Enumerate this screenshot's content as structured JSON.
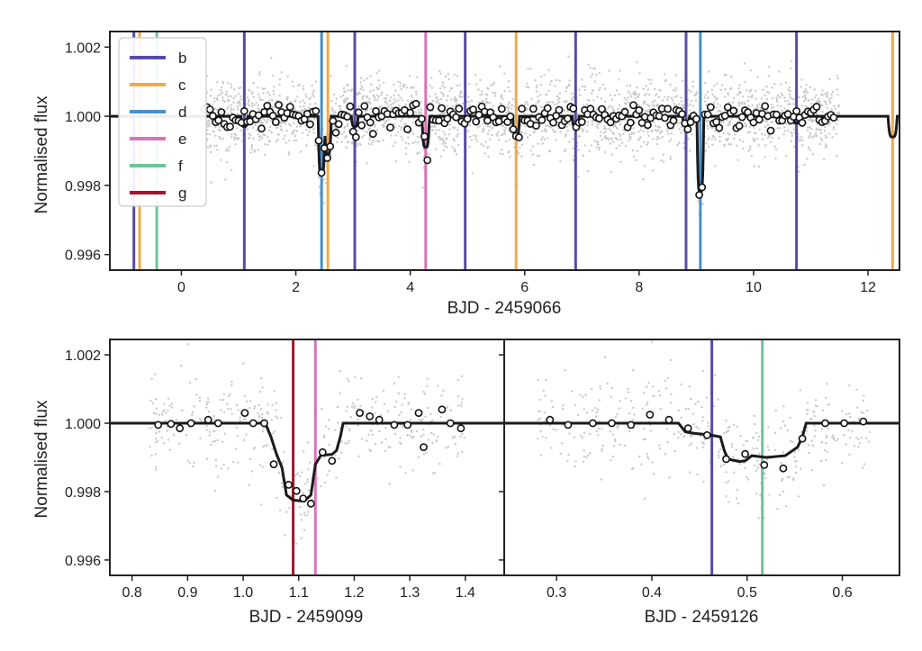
{
  "chart_data": [
    {
      "type": "scatter",
      "panel": "top",
      "xlabel": "BJD - 2459066",
      "ylabel": "Normalised flux",
      "xlim": [
        -1.25,
        12.55
      ],
      "ylim": [
        0.99555,
        1.00245
      ],
      "xticks": [
        0,
        2,
        4,
        6,
        8,
        10,
        12
      ],
      "yticks": [
        0.996,
        0.998,
        1.0,
        1.002
      ],
      "ytick_labels": [
        "0.996",
        "0.998",
        "1.000",
        "1.002"
      ],
      "legend": {
        "placement": "top-left",
        "entries": [
          {
            "label": "b",
            "color": "#5a4aa8"
          },
          {
            "label": "c",
            "color": "#f0a94a"
          },
          {
            "label": "d",
            "color": "#4a8fcb"
          },
          {
            "label": "e",
            "color": "#d774b8"
          },
          {
            "label": "f",
            "color": "#6cc49a"
          },
          {
            "label": "g",
            "color": "#a3152e"
          }
        ]
      },
      "transits": [
        {
          "planet": "b",
          "times": [
            -0.83,
            1.1,
            3.03,
            4.96,
            6.89,
            8.82,
            10.75
          ]
        },
        {
          "planet": "c",
          "times": [
            -0.73,
            2.56,
            5.85,
            12.43
          ]
        },
        {
          "planet": "d",
          "times": [
            2.45,
            9.07
          ]
        },
        {
          "planet": "e",
          "times": [
            4.27
          ]
        },
        {
          "planet": "f",
          "times": [
            -0.43
          ]
        },
        {
          "planet": "g",
          "times": []
        }
      ],
      "model": {
        "baseline": 1.0,
        "dips": [
          {
            "t": 2.45,
            "depth": 0.0017,
            "width": 0.12
          },
          {
            "t": 2.56,
            "depth": 0.0011,
            "width": 0.12
          },
          {
            "t": 9.07,
            "depth": 0.0022,
            "width": 0.12
          },
          {
            "t": 4.27,
            "depth": 0.0009,
            "width": 0.13
          },
          {
            "t": 12.43,
            "depth": 0.0006,
            "width": 0.16
          },
          {
            "t": 5.85,
            "depth": 0.0006,
            "width": 0.12
          },
          {
            "t": 1.1,
            "depth": 0.0003,
            "width": 0.12
          },
          {
            "t": 3.03,
            "depth": 0.0003,
            "width": 0.12
          },
          {
            "t": 6.89,
            "depth": 0.0003,
            "width": 0.12
          },
          {
            "t": 8.82,
            "depth": 0.0003,
            "width": 0.12
          },
          {
            "t": 10.75,
            "depth": 0.0002,
            "width": 0.12
          }
        ]
      },
      "raw_range": [
        0.4,
        11.5
      ],
      "binned_range": [
        0.4,
        11.45
      ]
    },
    {
      "type": "scatter",
      "panel": "bottom-left",
      "xlabel": "BJD - 2459099",
      "ylabel": "Normalised flux",
      "xlim": [
        0.76,
        1.47
      ],
      "ylim": [
        0.99555,
        1.00245
      ],
      "xticks": [
        0.8,
        0.9,
        1.0,
        1.1,
        1.2,
        1.3,
        1.4
      ],
      "xtick_labels": [
        "0.8",
        "0.9",
        "1.0",
        "1.1",
        "1.2",
        "1.3",
        "1.4"
      ],
      "yticks": [
        0.996,
        0.998,
        1.0,
        1.002
      ],
      "ytick_labels": [
        "0.996",
        "0.998",
        "1.000",
        "1.002"
      ],
      "transits": [
        {
          "planet": "g",
          "times": [
            1.09
          ]
        },
        {
          "planet": "e",
          "times": [
            1.13
          ]
        }
      ],
      "model": [
        [
          0.76,
          1.0
        ],
        [
          1.04,
          1.0
        ],
        [
          1.05,
          0.9996
        ],
        [
          1.06,
          0.9991
        ],
        [
          1.07,
          0.9987
        ],
        [
          1.078,
          0.9979
        ],
        [
          1.09,
          0.99775
        ],
        [
          1.11,
          0.99772
        ],
        [
          1.122,
          0.9979
        ],
        [
          1.13,
          0.9988
        ],
        [
          1.14,
          0.99906
        ],
        [
          1.16,
          0.99909
        ],
        [
          1.168,
          0.9992
        ],
        [
          1.175,
          0.9996
        ],
        [
          1.18,
          1.0
        ],
        [
          1.47,
          1.0
        ]
      ],
      "binned": [
        [
          0.847,
          0.99995
        ],
        [
          0.87,
          0.99998
        ],
        [
          0.886,
          0.99985
        ],
        [
          0.906,
          1.0
        ],
        [
          0.937,
          1.0001
        ],
        [
          0.955,
          1.0
        ],
        [
          1.003,
          1.0003
        ],
        [
          1.018,
          1.0
        ],
        [
          1.038,
          1.0
        ],
        [
          1.055,
          0.9988
        ],
        [
          1.082,
          0.9982
        ],
        [
          1.096,
          0.99802
        ],
        [
          1.108,
          0.9978
        ],
        [
          1.122,
          0.99765
        ],
        [
          1.143,
          0.99915
        ],
        [
          1.16,
          0.9989
        ],
        [
          1.21,
          1.0003
        ],
        [
          1.228,
          1.0002
        ],
        [
          1.245,
          1.0001
        ],
        [
          1.272,
          0.99995
        ],
        [
          1.296,
          0.99995
        ],
        [
          1.316,
          1.0003
        ],
        [
          1.325,
          0.9993
        ],
        [
          1.358,
          1.0004
        ],
        [
          1.373,
          1.0
        ],
        [
          1.392,
          0.99985
        ]
      ]
    },
    {
      "type": "scatter",
      "panel": "bottom-right",
      "xlabel": "BJD - 2459126",
      "xlim": [
        0.245,
        0.66
      ],
      "ylim": [
        0.99555,
        1.00245
      ],
      "xticks": [
        0.3,
        0.4,
        0.5,
        0.6
      ],
      "xtick_labels": [
        "0.3",
        "0.4",
        "0.5",
        "0.6"
      ],
      "transits": [
        {
          "planet": "b",
          "times": [
            0.463
          ]
        },
        {
          "planet": "f",
          "times": [
            0.516
          ]
        }
      ],
      "model": [
        [
          0.245,
          1.0
        ],
        [
          0.428,
          1.0
        ],
        [
          0.435,
          0.99975
        ],
        [
          0.445,
          0.9997
        ],
        [
          0.46,
          0.99966
        ],
        [
          0.472,
          0.9996
        ],
        [
          0.476,
          0.9992
        ],
        [
          0.48,
          0.99895
        ],
        [
          0.492,
          0.99888
        ],
        [
          0.498,
          0.9989
        ],
        [
          0.505,
          0.99905
        ],
        [
          0.52,
          0.999
        ],
        [
          0.54,
          0.99905
        ],
        [
          0.553,
          0.9993
        ],
        [
          0.558,
          0.9996
        ],
        [
          0.562,
          1.0
        ],
        [
          0.66,
          1.0
        ]
      ],
      "binned": [
        [
          0.293,
          1.0001
        ],
        [
          0.312,
          0.99995
        ],
        [
          0.338,
          1.0
        ],
        [
          0.358,
          1.0
        ],
        [
          0.378,
          0.99995
        ],
        [
          0.398,
          1.00025
        ],
        [
          0.418,
          1.0001
        ],
        [
          0.438,
          0.99985
        ],
        [
          0.458,
          0.99965
        ],
        [
          0.478,
          0.99895
        ],
        [
          0.498,
          0.9991
        ],
        [
          0.518,
          0.99878
        ],
        [
          0.538,
          0.99868
        ],
        [
          0.558,
          0.99955
        ],
        [
          0.582,
          1.0
        ],
        [
          0.602,
          1.0
        ],
        [
          0.622,
          1.00005
        ]
      ]
    }
  ]
}
